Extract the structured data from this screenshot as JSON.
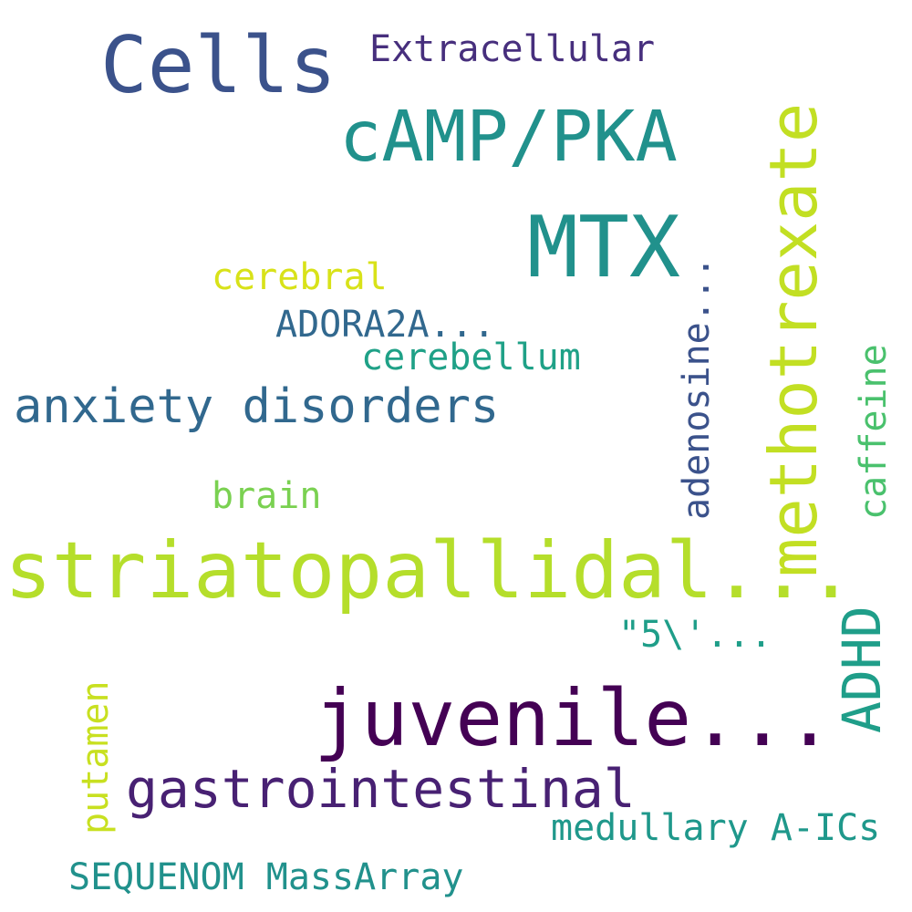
{
  "words": [
    {
      "id": "cells",
      "text": "Cells",
      "color": "#3b528b"
    },
    {
      "id": "extracellular",
      "text": "Extracellular",
      "color": "#472f7d"
    },
    {
      "id": "camp-pka",
      "text": "cAMP/PKA",
      "color": "#21918c"
    },
    {
      "id": "methotrexate",
      "text": "methotrexate",
      "color": "#c2df23"
    },
    {
      "id": "mtx",
      "text": "MTX",
      "color": "#21918c"
    },
    {
      "id": "adenosine",
      "text": "adenosine...",
      "color": "#3b528b"
    },
    {
      "id": "cerebral",
      "text": "cerebral",
      "color": "#d8e219"
    },
    {
      "id": "adora2a",
      "text": "ADORA2A...",
      "color": "#31688e"
    },
    {
      "id": "cerebellum",
      "text": "cerebellum",
      "color": "#1fa187"
    },
    {
      "id": "caffeine",
      "text": "caffeine",
      "color": "#4ac16d"
    },
    {
      "id": "anxiety-disorders",
      "text": "anxiety disorders",
      "color": "#31688e"
    },
    {
      "id": "brain",
      "text": "brain",
      "color": "#7ad151"
    },
    {
      "id": "striatopallidal",
      "text": "striatopallidal...",
      "color": "#b5de2b"
    },
    {
      "id": "adhd",
      "text": "ADHD",
      "color": "#1f9e89"
    },
    {
      "id": "five-prime",
      "text": "\"5\\'...",
      "color": "#1f9e89"
    },
    {
      "id": "juvenile",
      "text": "juvenile...",
      "color": "#440154"
    },
    {
      "id": "putamen",
      "text": "putamen",
      "color": "#c8e020"
    },
    {
      "id": "gastrointestinal",
      "text": "gastrointestinal",
      "color": "#482173"
    },
    {
      "id": "medullary-a-ics",
      "text": "medullary A-ICs",
      "color": "#1f988b"
    },
    {
      "id": "sequenom-massarray",
      "text": "SEQUENOM MassArray",
      "color": "#21918c"
    }
  ]
}
